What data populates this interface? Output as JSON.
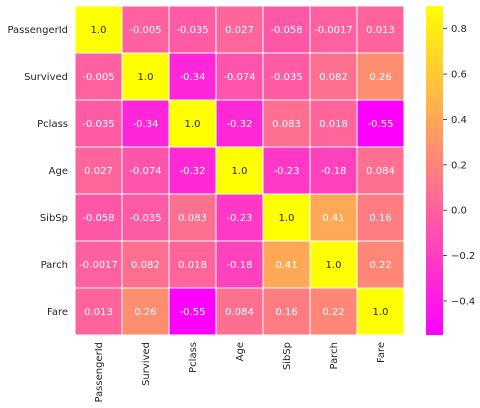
{
  "chart_data": {
    "type": "heatmap",
    "title": "",
    "xlabel": "",
    "ylabel": "",
    "x": [
      "PassengerId",
      "Survived",
      "Pclass",
      "Age",
      "SibSp",
      "Parch",
      "Fare"
    ],
    "y": [
      "PassengerId",
      "Survived",
      "Pclass",
      "Age",
      "SibSp",
      "Parch",
      "Fare"
    ],
    "values": [
      [
        1.0,
        -0.005,
        -0.035,
        0.027,
        -0.058,
        -0.0017,
        0.013
      ],
      [
        -0.005,
        1.0,
        -0.34,
        -0.074,
        -0.035,
        0.082,
        0.26
      ],
      [
        -0.035,
        -0.34,
        1.0,
        -0.32,
        0.083,
        0.018,
        -0.55
      ],
      [
        0.027,
        -0.074,
        -0.32,
        1.0,
        -0.23,
        -0.18,
        0.084
      ],
      [
        -0.058,
        -0.035,
        0.083,
        -0.23,
        1.0,
        0.41,
        0.16
      ],
      [
        -0.0017,
        0.082,
        0.018,
        -0.18,
        0.41,
        1.0,
        0.22
      ],
      [
        0.013,
        0.26,
        -0.55,
        0.084,
        0.16,
        0.22,
        1.0
      ]
    ],
    "cell_labels": [
      [
        "1.0",
        "-0.005",
        "-0.035",
        "0.027",
        "-0.058",
        "-0.0017",
        "0.013"
      ],
      [
        "-0.005",
        "1.0",
        "-0.34",
        "-0.074",
        "-0.035",
        "0.082",
        "0.26"
      ],
      [
        "-0.035",
        "-0.34",
        "1.0",
        "-0.32",
        "0.083",
        "0.018",
        "-0.55"
      ],
      [
        "0.027",
        "-0.074",
        "-0.32",
        "1.0",
        "-0.23",
        "-0.18",
        "0.084"
      ],
      [
        "-0.058",
        "-0.035",
        "0.083",
        "-0.23",
        "1.0",
        "0.41",
        "0.16"
      ],
      [
        "-0.0017",
        "0.082",
        "0.018",
        "-0.18",
        "0.41",
        "1.0",
        "0.22"
      ],
      [
        "0.013",
        "0.26",
        "-0.55",
        "0.084",
        "0.16",
        "0.22",
        "1.0"
      ]
    ],
    "colormap": "spring",
    "colormap_colors": [
      "#ff00ff",
      "#ffff00"
    ],
    "vmin": -0.55,
    "vmax": 0.9,
    "cell_border_color": "#ffffff",
    "colorbar": {
      "ticks": [
        -0.4,
        -0.2,
        0.0,
        0.2,
        0.4,
        0.6,
        0.8
      ],
      "tick_labels": [
        "−0.4",
        "−0.2",
        "0.0",
        "0.2",
        "0.4",
        "0.6",
        "0.8"
      ],
      "position": "right"
    },
    "grid": false
  }
}
